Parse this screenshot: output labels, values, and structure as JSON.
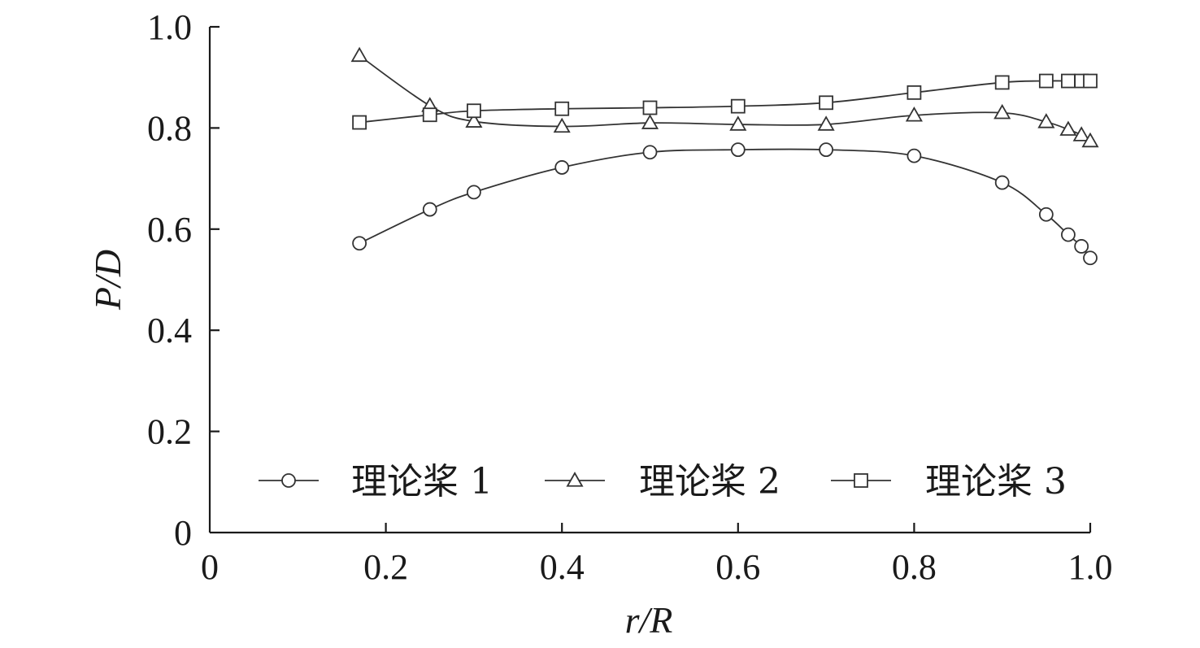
{
  "chart_data": {
    "type": "line",
    "xlabel": "r/R",
    "ylabel": "P/D",
    "xlim": [
      0,
      1.0
    ],
    "ylim": [
      0,
      1.0
    ],
    "x_ticks": [
      {
        "value": 0,
        "label": "0"
      },
      {
        "value": 0.2,
        "label": "0.2"
      },
      {
        "value": 0.4,
        "label": "0.4"
      },
      {
        "value": 0.6,
        "label": "0.6"
      },
      {
        "value": 0.8,
        "label": "0.8"
      },
      {
        "value": 1.0,
        "label": "1.0"
      }
    ],
    "y_ticks": [
      {
        "value": 0,
        "label": "0"
      },
      {
        "value": 0.2,
        "label": "0.2"
      },
      {
        "value": 0.4,
        "label": "0.4"
      },
      {
        "value": 0.6,
        "label": "0.6"
      },
      {
        "value": 0.8,
        "label": "0.8"
      },
      {
        "value": 1.0,
        "label": "1.0"
      }
    ],
    "grid": false,
    "legend_position": "bottom",
    "series": [
      {
        "name": "理论桨 1",
        "marker": "circle",
        "x": [
          0.17,
          0.25,
          0.3,
          0.4,
          0.5,
          0.6,
          0.7,
          0.8,
          0.9,
          0.95,
          0.975,
          0.99,
          1.0
        ],
        "y": [
          0.572,
          0.639,
          0.673,
          0.722,
          0.752,
          0.757,
          0.757,
          0.745,
          0.692,
          0.629,
          0.589,
          0.566,
          0.543
        ]
      },
      {
        "name": "理论桨 2",
        "marker": "triangle",
        "x": [
          0.17,
          0.25,
          0.3,
          0.4,
          0.5,
          0.6,
          0.7,
          0.8,
          0.9,
          0.95,
          0.975,
          0.99,
          1.0
        ],
        "y": [
          0.943,
          0.844,
          0.813,
          0.803,
          0.81,
          0.807,
          0.807,
          0.825,
          0.83,
          0.812,
          0.797,
          0.786,
          0.774
        ]
      },
      {
        "name": "理论桨 3",
        "marker": "square",
        "x": [
          0.17,
          0.25,
          0.3,
          0.4,
          0.5,
          0.6,
          0.7,
          0.8,
          0.9,
          0.95,
          0.975,
          0.99,
          1.0
        ],
        "y": [
          0.811,
          0.826,
          0.834,
          0.838,
          0.84,
          0.843,
          0.85,
          0.87,
          0.89,
          0.893,
          0.893,
          0.893,
          0.893
        ]
      }
    ],
    "colors": {
      "line": "#333333",
      "axis": "#1a1a1a",
      "background": "#ffffff"
    }
  }
}
